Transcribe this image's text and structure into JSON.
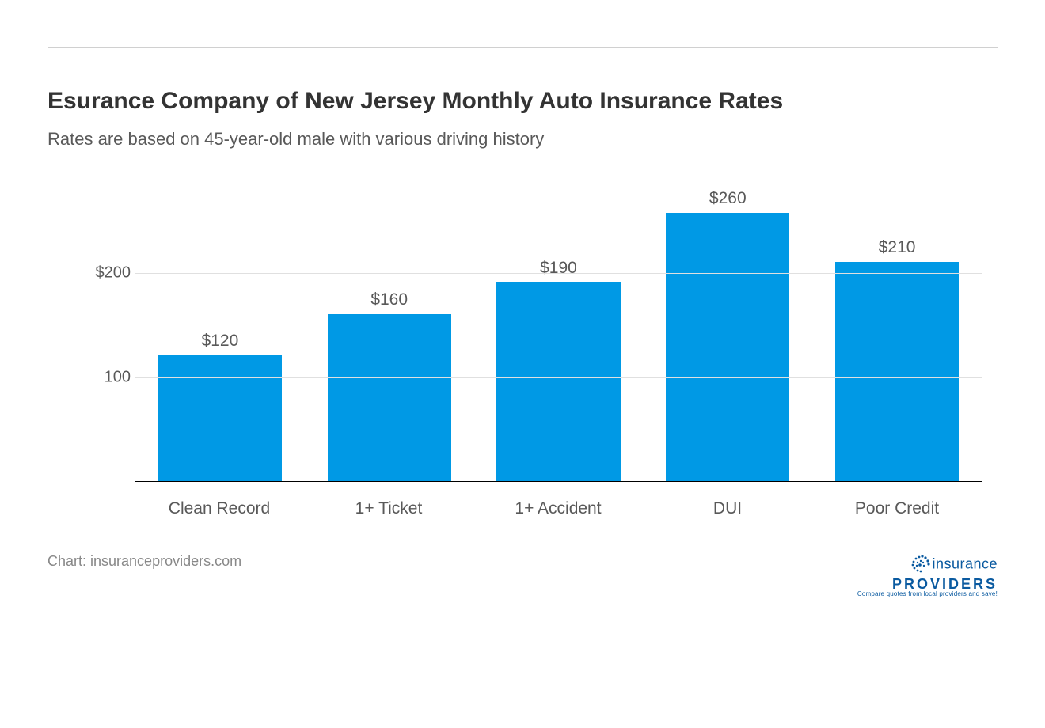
{
  "title": "Esurance Company of New Jersey Monthly Auto Insurance Rates",
  "subtitle": "Rates are based on 45-year-old male with various driving history",
  "source": "Chart: insuranceproviders.com",
  "logo": {
    "line1": "insurance",
    "line2": "PROVIDERS",
    "tagline": "Compare quotes from local providers and save!"
  },
  "chart": {
    "type": "bar",
    "categories": [
      "Clean Record",
      "1+ Ticket",
      "1+ Accident",
      "DUI",
      "Poor Credit"
    ],
    "values": [
      120,
      160,
      190,
      260,
      210
    ],
    "value_labels": [
      "$120",
      "$160",
      "$190",
      "$260",
      "$210"
    ],
    "bar_color": "#0099e5",
    "ymin": 0,
    "ymax": 280,
    "yticks": [
      100,
      200
    ],
    "ytick_labels": [
      "100",
      "$200"
    ],
    "grid_color": "#e0e0e0",
    "axis_color": "#000000",
    "label_color": "#595959",
    "label_fontsize": 21,
    "value_label_fontsize": 21,
    "background_color": "#ffffff",
    "bar_width_pct": 73
  }
}
